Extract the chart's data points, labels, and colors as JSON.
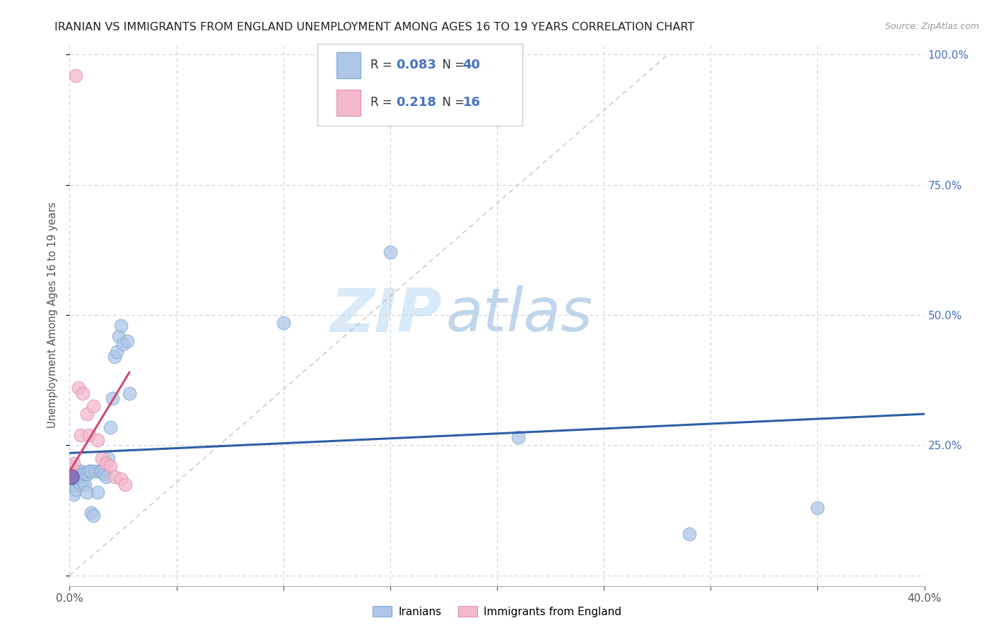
{
  "title": "IRANIAN VS IMMIGRANTS FROM ENGLAND UNEMPLOYMENT AMONG AGES 16 TO 19 YEARS CORRELATION CHART",
  "source": "Source: ZipAtlas.com",
  "ylabel": "Unemployment Among Ages 16 to 19 years",
  "xlim": [
    0.0,
    0.4
  ],
  "ylim": [
    0.0,
    1.0
  ],
  "xticks": [
    0.0,
    0.05,
    0.1,
    0.15,
    0.2,
    0.25,
    0.3,
    0.35,
    0.4
  ],
  "yticks": [
    0.0,
    0.25,
    0.5,
    0.75,
    1.0
  ],
  "series1_label": "Iranians",
  "series1_color": "#aec6e8",
  "series1_edge": "#7fa8d4",
  "series1_R": "0.083",
  "series1_N": "40",
  "series2_label": "Immigrants from England",
  "series2_color": "#f4b8cb",
  "series2_edge": "#e090a8",
  "series2_R": "0.218",
  "series2_N": "16",
  "iranians_x": [
    0.001,
    0.002,
    0.002,
    0.003,
    0.003,
    0.004,
    0.004,
    0.005,
    0.005,
    0.006,
    0.006,
    0.007,
    0.007,
    0.008,
    0.008,
    0.009,
    0.01,
    0.01,
    0.011,
    0.012,
    0.013,
    0.014,
    0.015,
    0.016,
    0.017,
    0.018,
    0.019,
    0.02,
    0.021,
    0.022,
    0.023,
    0.024,
    0.025,
    0.027,
    0.028,
    0.1,
    0.15,
    0.21,
    0.29,
    0.35
  ],
  "iranians_y": [
    0.175,
    0.155,
    0.19,
    0.165,
    0.2,
    0.18,
    0.2,
    0.175,
    0.2,
    0.195,
    0.18,
    0.175,
    0.195,
    0.16,
    0.195,
    0.2,
    0.2,
    0.12,
    0.115,
    0.2,
    0.16,
    0.2,
    0.2,
    0.195,
    0.19,
    0.225,
    0.285,
    0.34,
    0.42,
    0.43,
    0.46,
    0.48,
    0.445,
    0.45,
    0.35,
    0.485,
    0.62,
    0.265,
    0.08,
    0.13
  ],
  "england_x": [
    0.001,
    0.002,
    0.003,
    0.004,
    0.005,
    0.006,
    0.008,
    0.009,
    0.011,
    0.013,
    0.015,
    0.017,
    0.019,
    0.021,
    0.024,
    0.026
  ],
  "england_y": [
    0.21,
    0.215,
    0.96,
    0.36,
    0.27,
    0.35,
    0.31,
    0.27,
    0.325,
    0.26,
    0.225,
    0.215,
    0.21,
    0.19,
    0.185,
    0.175
  ],
  "watermark_zip": "ZIP",
  "watermark_atlas": "atlas",
  "trend1_color": "#2d5fa6",
  "trend2_color": "#d44870",
  "trend1_start_y": 0.235,
  "trend1_end_y": 0.31,
  "trend2_start_y": 0.2,
  "trend2_end_x": 0.028,
  "trend2_end_y": 0.39,
  "diag_color": "#ccaaaa",
  "background_color": "#ffffff",
  "grid_color": "#cccccc",
  "accent_color": "#4472c4"
}
